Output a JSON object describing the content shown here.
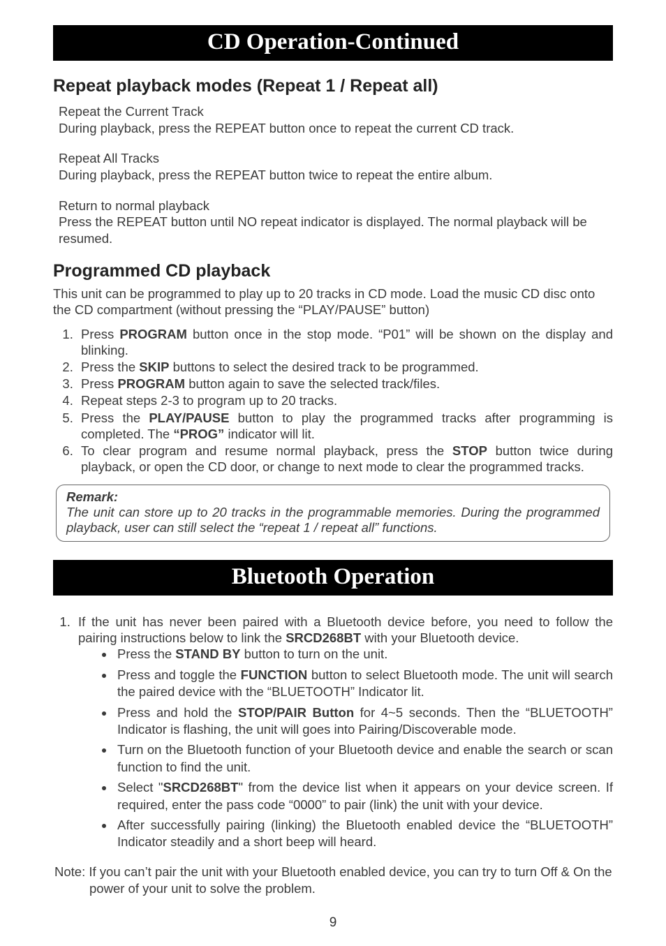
{
  "banner1": "CD Operation-Continued",
  "repeat": {
    "heading": "Repeat playback modes (Repeat 1 / Repeat all)",
    "current_title": "Repeat the Current Track",
    "current_body": "During playback, press the REPEAT button once to repeat the current CD track.",
    "all_title": "Repeat All Tracks",
    "all_body": "During playback, press the REPEAT button twice to repeat the entire album.",
    "return_title": "Return to normal playback",
    "return_body": "Press the REPEAT button until NO repeat indicator is displayed. The normal playback will be resumed."
  },
  "program": {
    "heading": "Programmed CD playback",
    "intro": "This unit can be programmed to play up to 20 tracks in CD mode. Load the music CD disc onto the CD compartment (without pressing the “PLAY/PAUSE” button)",
    "steps": {
      "s1a": "Press ",
      "s1_kw": "PROGRAM",
      "s1b": "  button once in the stop mode. “P01” will be shown on the display and blinking.",
      "s2a": "Press the ",
      "s2_kw": "SKIP",
      "s2b": " buttons to select the desired track to be programmed.",
      "s3a": "Press ",
      "s3_kw": "PROGRAM",
      "s3b": "  button again to save the selected track/files.",
      "s4": "Repeat steps 2-3 to program up to 20 tracks.",
      "s5a": "Press the ",
      "s5_kw": "PLAY/PAUSE",
      "s5b": " button to play the programmed tracks after programming is completed. The ",
      "s5_kw2": "“PROG”",
      "s5c": " indicator will lit.",
      "s6a": "To clear program and resume normal playback, press the ",
      "s6_kw": "STOP",
      "s6b": " button twice during playback, or open the CD door, or change to next mode to clear the programmed tracks."
    },
    "remark_title": "Remark:",
    "remark_body": "The unit can store up to 20 tracks in the programmable memories. During the programmed playback, user can still select the “repeat 1 / repeat all” functions."
  },
  "banner2": "Bluetooth Operation",
  "bt": {
    "intro_a": "If the unit has never been paired with a Bluetooth device before, you need to follow the pairing instructions below to link the ",
    "intro_kw": "SRCD268BT",
    "intro_b": " with your Bluetooth device.",
    "b1a": "Press the ",
    "b1_kw": "STAND BY",
    "b1b": " button to turn on the unit.",
    "b2a": "Press and toggle the ",
    "b2_kw": "FUNCTION",
    "b2b": " button to select Bluetooth mode. The unit will search the paired device with the “BLUETOOTH” Indicator lit.",
    "b3a": "Press and hold the ",
    "b3_kw": "STOP/PAIR Button",
    "b3b": " for 4~5 seconds. Then the “BLUETOOTH” Indicator is flashing, the unit will goes into Pairing/Discoverable mode.",
    "b4": "Turn on the Bluetooth function of your Bluetooth device and enable the search or scan function to find the unit.",
    "b5a": "Select \"",
    "b5_kw": "SRCD268BT",
    "b5b": "\" from the device list when it appears on your device screen. If required, enter the pass code “0000” to pair (link) the unit with your device.",
    "b6": "After successfully pairing (linking) the Bluetooth enabled device the “BLUETOOTH” Indicator steadily and a short beep will heard.",
    "note": "Note: If you can’t pair the unit with your Bluetooth enabled device, you can try to turn Off & On the power of your unit to solve the problem."
  },
  "page_number": "9"
}
